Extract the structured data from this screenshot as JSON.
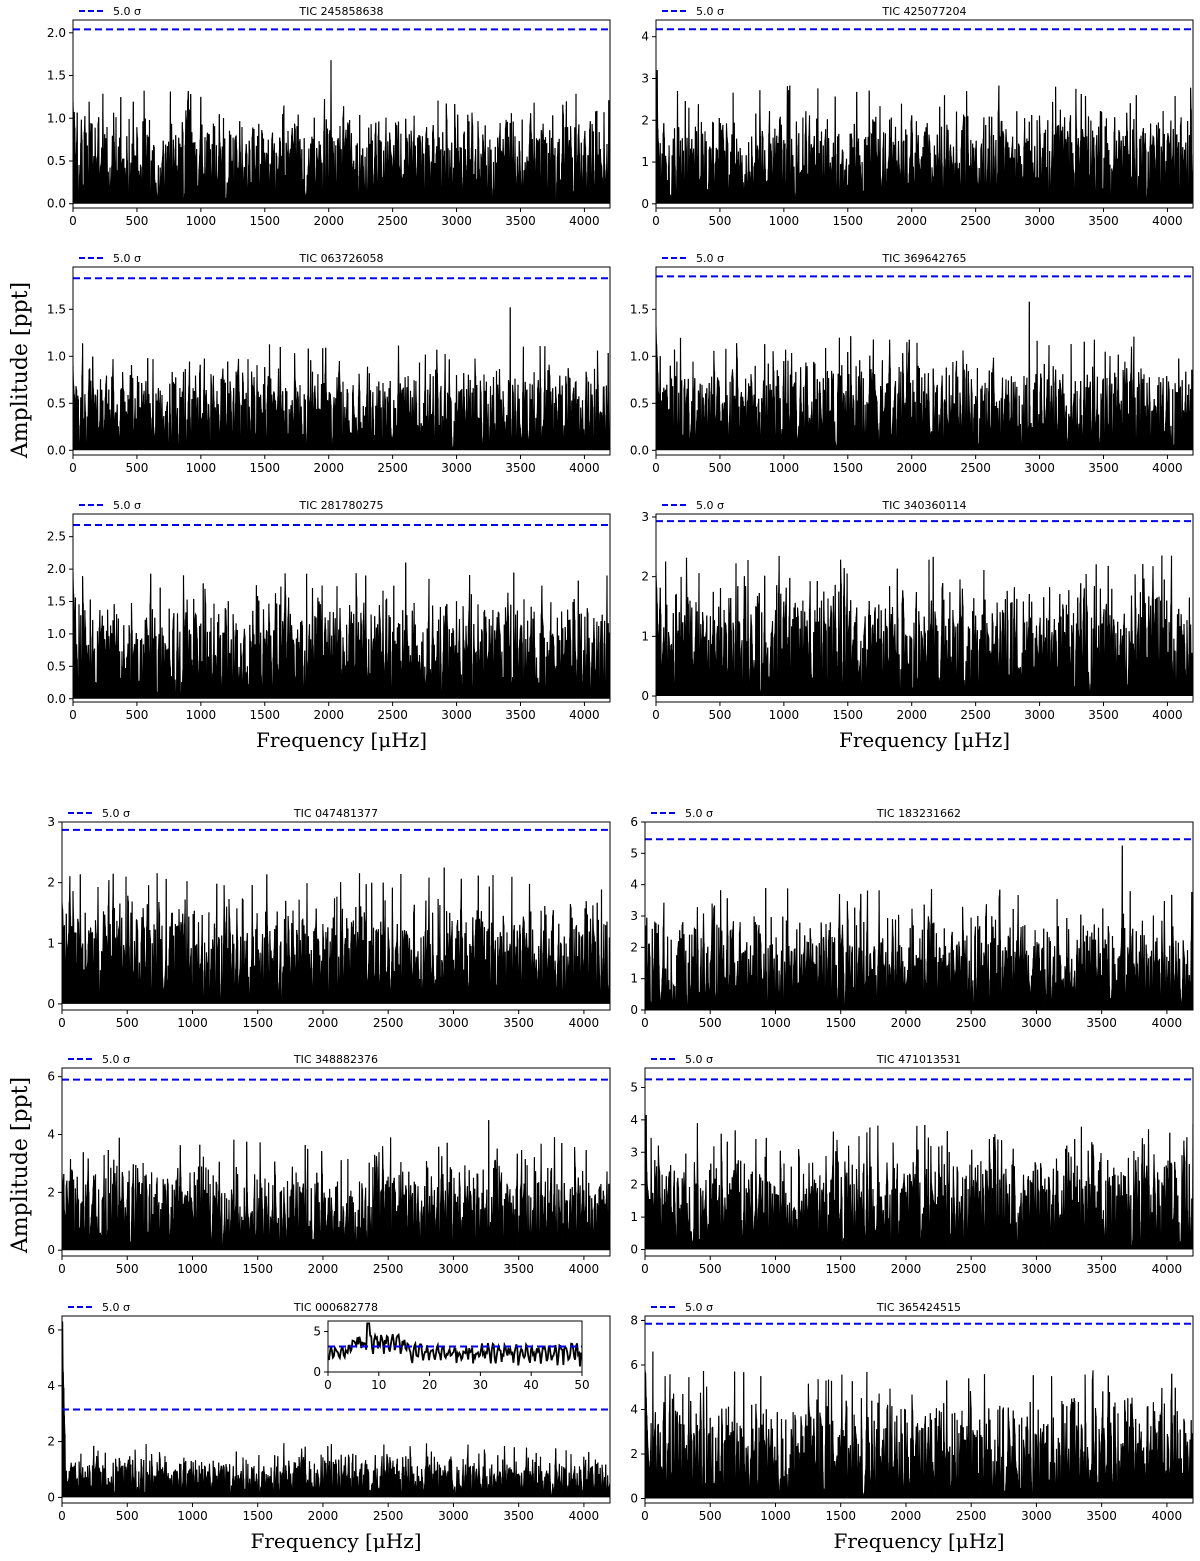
{
  "figure": {
    "ylabel": "Amplitude [ppt]",
    "xlabel": "Frequency [μHz]",
    "line_color": "#000000",
    "threshold_color": "#0000ff"
  },
  "chart_data": [
    {
      "type": "line",
      "title": "TIC 245858638",
      "legend": "5.0 σ",
      "threshold": 2.04,
      "noise_level": 1.0,
      "max_peak": 1.68,
      "peak_x": 2020,
      "start_peak": 1.2,
      "xlim": [
        0,
        4200
      ],
      "ylim": [
        -0.05,
        2.15
      ],
      "xticks": [
        0,
        500,
        1000,
        1500,
        2000,
        2500,
        3000,
        3500,
        4000
      ],
      "yticks": [
        0.0,
        0.5,
        1.0,
        1.5,
        2.0
      ],
      "ytick_labels": [
        "0.0",
        "0.5",
        "1.0",
        "1.5",
        "2.0"
      ]
    },
    {
      "type": "line",
      "title": "TIC 425077204",
      "legend": "5.0 σ",
      "threshold": 4.18,
      "noise_level": 2.1,
      "max_peak": 3.2,
      "peak_x": 10,
      "start_peak": 3.2,
      "xlim": [
        0,
        4200
      ],
      "ylim": [
        -0.1,
        4.4
      ],
      "xticks": [
        0,
        500,
        1000,
        1500,
        2000,
        2500,
        3000,
        3500,
        4000
      ],
      "yticks": [
        0,
        1,
        2,
        3,
        4
      ],
      "ytick_labels": [
        "0",
        "1",
        "2",
        "3",
        "4"
      ]
    },
    {
      "type": "line",
      "title": "TIC 063726058",
      "legend": "5.0 σ",
      "threshold": 1.83,
      "noise_level": 0.85,
      "max_peak": 1.52,
      "peak_x": 3420,
      "start_peak": 0.9,
      "xlim": [
        0,
        4200
      ],
      "ylim": [
        -0.05,
        1.95
      ],
      "xticks": [
        0,
        500,
        1000,
        1500,
        2000,
        2500,
        3000,
        3500,
        4000
      ],
      "yticks": [
        0.0,
        0.5,
        1.0,
        1.5
      ],
      "ytick_labels": [
        "0.0",
        "0.5",
        "1.0",
        "1.5"
      ]
    },
    {
      "type": "line",
      "title": "TIC 369642765",
      "legend": "5.0 σ",
      "threshold": 1.85,
      "noise_level": 0.9,
      "max_peak": 1.58,
      "peak_x": 2920,
      "start_peak": 1.38,
      "xlim": [
        0,
        4200
      ],
      "ylim": [
        -0.05,
        1.95
      ],
      "xticks": [
        0,
        500,
        1000,
        1500,
        2000,
        2500,
        3000,
        3500,
        4000
      ],
      "yticks": [
        0.0,
        0.5,
        1.0,
        1.5
      ],
      "ytick_labels": [
        "0.0",
        "0.5",
        "1.0",
        "1.5"
      ]
    },
    {
      "type": "line",
      "title": "TIC 281780275",
      "legend": "5.0 σ",
      "threshold": 2.68,
      "noise_level": 1.45,
      "max_peak": 2.1,
      "peak_x": 2600,
      "start_peak": 2.0,
      "xlim": [
        0,
        4200
      ],
      "ylim": [
        -0.05,
        2.85
      ],
      "xticks": [
        0,
        500,
        1000,
        1500,
        2000,
        2500,
        3000,
        3500,
        4000
      ],
      "yticks": [
        0.0,
        0.5,
        1.0,
        1.5,
        2.0,
        2.5
      ],
      "ytick_labels": [
        "0.0",
        "0.5",
        "1.0",
        "1.5",
        "2.0",
        "2.5"
      ],
      "xlabel": "Frequency [μHz]"
    },
    {
      "type": "line",
      "title": "TIC 340360114",
      "legend": "5.0 σ",
      "threshold": 2.93,
      "noise_level": 1.75,
      "max_peak": 2.28,
      "peak_x": 720,
      "start_peak": 2.15,
      "xlim": [
        0,
        4200
      ],
      "ylim": [
        -0.1,
        3.05
      ],
      "xticks": [
        0,
        500,
        1000,
        1500,
        2000,
        2500,
        3000,
        3500,
        4000
      ],
      "yticks": [
        0,
        1,
        2,
        3
      ],
      "ytick_labels": [
        "0",
        "1",
        "2",
        "3"
      ],
      "xlabel": "Frequency [μHz]"
    },
    {
      "type": "line",
      "title": "TIC 047481377",
      "legend": "5.0 σ",
      "threshold": 2.87,
      "noise_level": 1.6,
      "max_peak": 2.25,
      "peak_x": 2930,
      "start_peak": 1.8,
      "xlim": [
        0,
        4200
      ],
      "ylim": [
        -0.1,
        3.0
      ],
      "xticks": [
        0,
        500,
        1000,
        1500,
        2000,
        2500,
        3000,
        3500,
        4000
      ],
      "yticks": [
        0,
        1,
        2,
        3
      ],
      "ytick_labels": [
        "0",
        "1",
        "2",
        "3"
      ]
    },
    {
      "type": "line",
      "title": "TIC 183231662",
      "legend": "5.0 σ",
      "threshold": 5.45,
      "noise_level": 2.9,
      "max_peak": 5.25,
      "peak_x": 3660,
      "start_peak": 2.8,
      "xlim": [
        0,
        4200
      ],
      "ylim": [
        0,
        6.0
      ],
      "xticks": [
        0,
        500,
        1000,
        1500,
        2000,
        2500,
        3000,
        3500,
        4000
      ],
      "yticks": [
        0,
        1,
        2,
        3,
        4,
        5,
        6
      ],
      "ytick_labels": [
        "0",
        "1",
        "2",
        "3",
        "4",
        "5",
        "6"
      ]
    },
    {
      "type": "line",
      "title": "TIC 348882376",
      "legend": "5.0 σ",
      "threshold": 5.9,
      "noise_level": 2.9,
      "max_peak": 4.5,
      "peak_x": 3270,
      "start_peak": 2.7,
      "xlim": [
        0,
        4200
      ],
      "ylim": [
        -0.2,
        6.3
      ],
      "xticks": [
        0,
        500,
        1000,
        1500,
        2000,
        2500,
        3000,
        3500,
        4000
      ],
      "yticks": [
        0,
        2,
        4,
        6
      ],
      "ytick_labels": [
        "0",
        "2",
        "4",
        "6"
      ]
    },
    {
      "type": "line",
      "title": "TIC 471013531",
      "legend": "5.0 σ",
      "threshold": 5.25,
      "noise_level": 2.9,
      "max_peak": 4.15,
      "peak_x": 10,
      "start_peak": 4.15,
      "xlim": [
        0,
        4200
      ],
      "ylim": [
        -0.2,
        5.6
      ],
      "xticks": [
        0,
        500,
        1000,
        1500,
        2000,
        2500,
        3000,
        3500,
        4000
      ],
      "yticks": [
        0,
        1,
        2,
        3,
        4,
        5
      ],
      "ytick_labels": [
        "0",
        "1",
        "2",
        "3",
        "4",
        "5"
      ]
    },
    {
      "type": "line",
      "title": "TIC 000682778",
      "legend": "5.0 σ",
      "threshold": 3.15,
      "noise_level": 1.45,
      "max_peak": 6.3,
      "peak_x": 5,
      "start_peak": 6.3,
      "xlim": [
        0,
        4200
      ],
      "ylim": [
        -0.2,
        6.5
      ],
      "xticks": [
        0,
        500,
        1000,
        1500,
        2000,
        2500,
        3000,
        3500,
        4000
      ],
      "yticks": [
        0,
        2,
        4,
        6
      ],
      "ytick_labels": [
        "0",
        "2",
        "4",
        "6"
      ],
      "xlabel": "Frequency [μHz]",
      "inset": {
        "type": "line",
        "xlim": [
          0,
          50
        ],
        "ylim": [
          0,
          6.3
        ],
        "xticks": [
          0,
          10,
          20,
          30,
          40,
          50
        ],
        "yticks": [
          0,
          5
        ],
        "threshold": 3.15,
        "peak": 6.0
      }
    },
    {
      "type": "line",
      "title": "TIC 365424515",
      "legend": "5.0 σ",
      "threshold": 7.85,
      "noise_level": 4.3,
      "max_peak": 6.6,
      "peak_x": 60,
      "start_peak": 6.6,
      "xlim": [
        0,
        4200
      ],
      "ylim": [
        -0.2,
        8.2
      ],
      "xticks": [
        0,
        500,
        1000,
        1500,
        2000,
        2500,
        3000,
        3500,
        4000
      ],
      "yticks": [
        0,
        2,
        4,
        6,
        8
      ],
      "ytick_labels": [
        "0",
        "2",
        "4",
        "6",
        "8"
      ],
      "xlabel": "Frequency [μHz]"
    }
  ]
}
